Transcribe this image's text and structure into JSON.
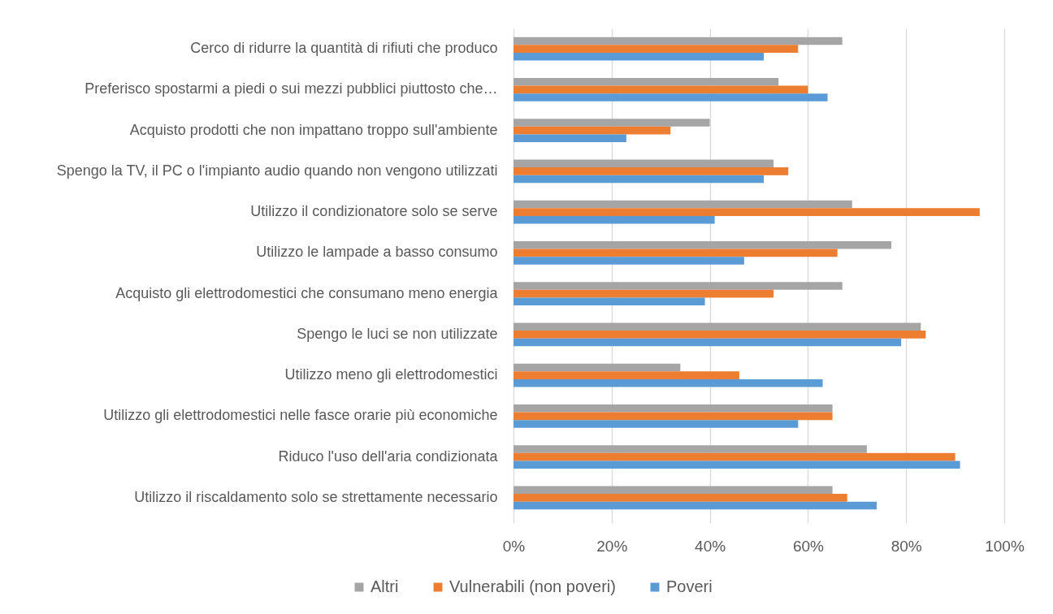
{
  "chart_data": {
    "type": "bar",
    "orientation": "horizontal",
    "categories": [
      "Cerco di ridurre la quantità di rifiuti che produco",
      "Preferisco spostarmi a piedi o sui mezzi pubblici piuttosto che…",
      "Acquisto prodotti che non impattano troppo sull'ambiente",
      "Spengo la TV, il PC o l'impianto audio quando non vengono utilizzati",
      "Utilizzo il condizionatore solo se serve",
      "Utilizzo le lampade a basso consumo",
      "Acquisto gli elettrodomestici che consumano meno energia",
      "Spengo le luci se non utilizzate",
      "Utilizzo meno gli elettrodomestici",
      "Utilizzo gli elettrodomestici nelle fasce orarie più economiche",
      "Riduco l'uso dell'aria condizionata",
      "Utilizzo il riscaldamento solo se strettamente necessario"
    ],
    "series": [
      {
        "name": "Altri",
        "color": "#a5a5a5",
        "values": [
          67,
          54,
          40,
          53,
          69,
          77,
          67,
          83,
          34,
          65,
          72,
          65
        ]
      },
      {
        "name": "Vulnerabili (non poveri)",
        "color": "#ed7d31",
        "values": [
          58,
          60,
          32,
          56,
          95,
          66,
          53,
          84,
          46,
          65,
          90,
          68
        ]
      },
      {
        "name": "Poveri",
        "color": "#5b9bd5",
        "values": [
          51,
          64,
          23,
          51,
          41,
          47,
          39,
          79,
          63,
          58,
          91,
          74
        ]
      }
    ],
    "xlim": [
      0,
      100
    ],
    "xticks": [
      {
        "value": 0,
        "label": "0%"
      },
      {
        "value": 20,
        "label": "20%"
      },
      {
        "value": 40,
        "label": "40%"
      },
      {
        "value": 60,
        "label": "60%"
      },
      {
        "value": 80,
        "label": "80%"
      },
      {
        "value": 100,
        "label": "100%"
      }
    ],
    "grid": "x",
    "legend": "bottom"
  }
}
